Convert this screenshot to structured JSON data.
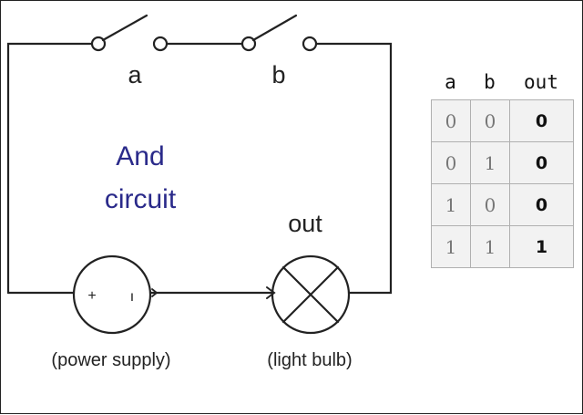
{
  "diagram": {
    "title_line1": "And",
    "title_line2": "circuit",
    "switch_a_label": "a",
    "switch_b_label": "b",
    "bulb_label": "out",
    "power_supply_caption": "(power supply)",
    "bulb_caption": "(light bulb)",
    "plus_sign": "+",
    "minus_sign": "ı",
    "title_color": "#2a2a8a"
  },
  "truth_table": {
    "headers": [
      "a",
      "b",
      "out"
    ],
    "rows": [
      [
        "0",
        "0",
        "0"
      ],
      [
        "0",
        "1",
        "0"
      ],
      [
        "1",
        "0",
        "0"
      ],
      [
        "1",
        "1",
        "1"
      ]
    ]
  }
}
